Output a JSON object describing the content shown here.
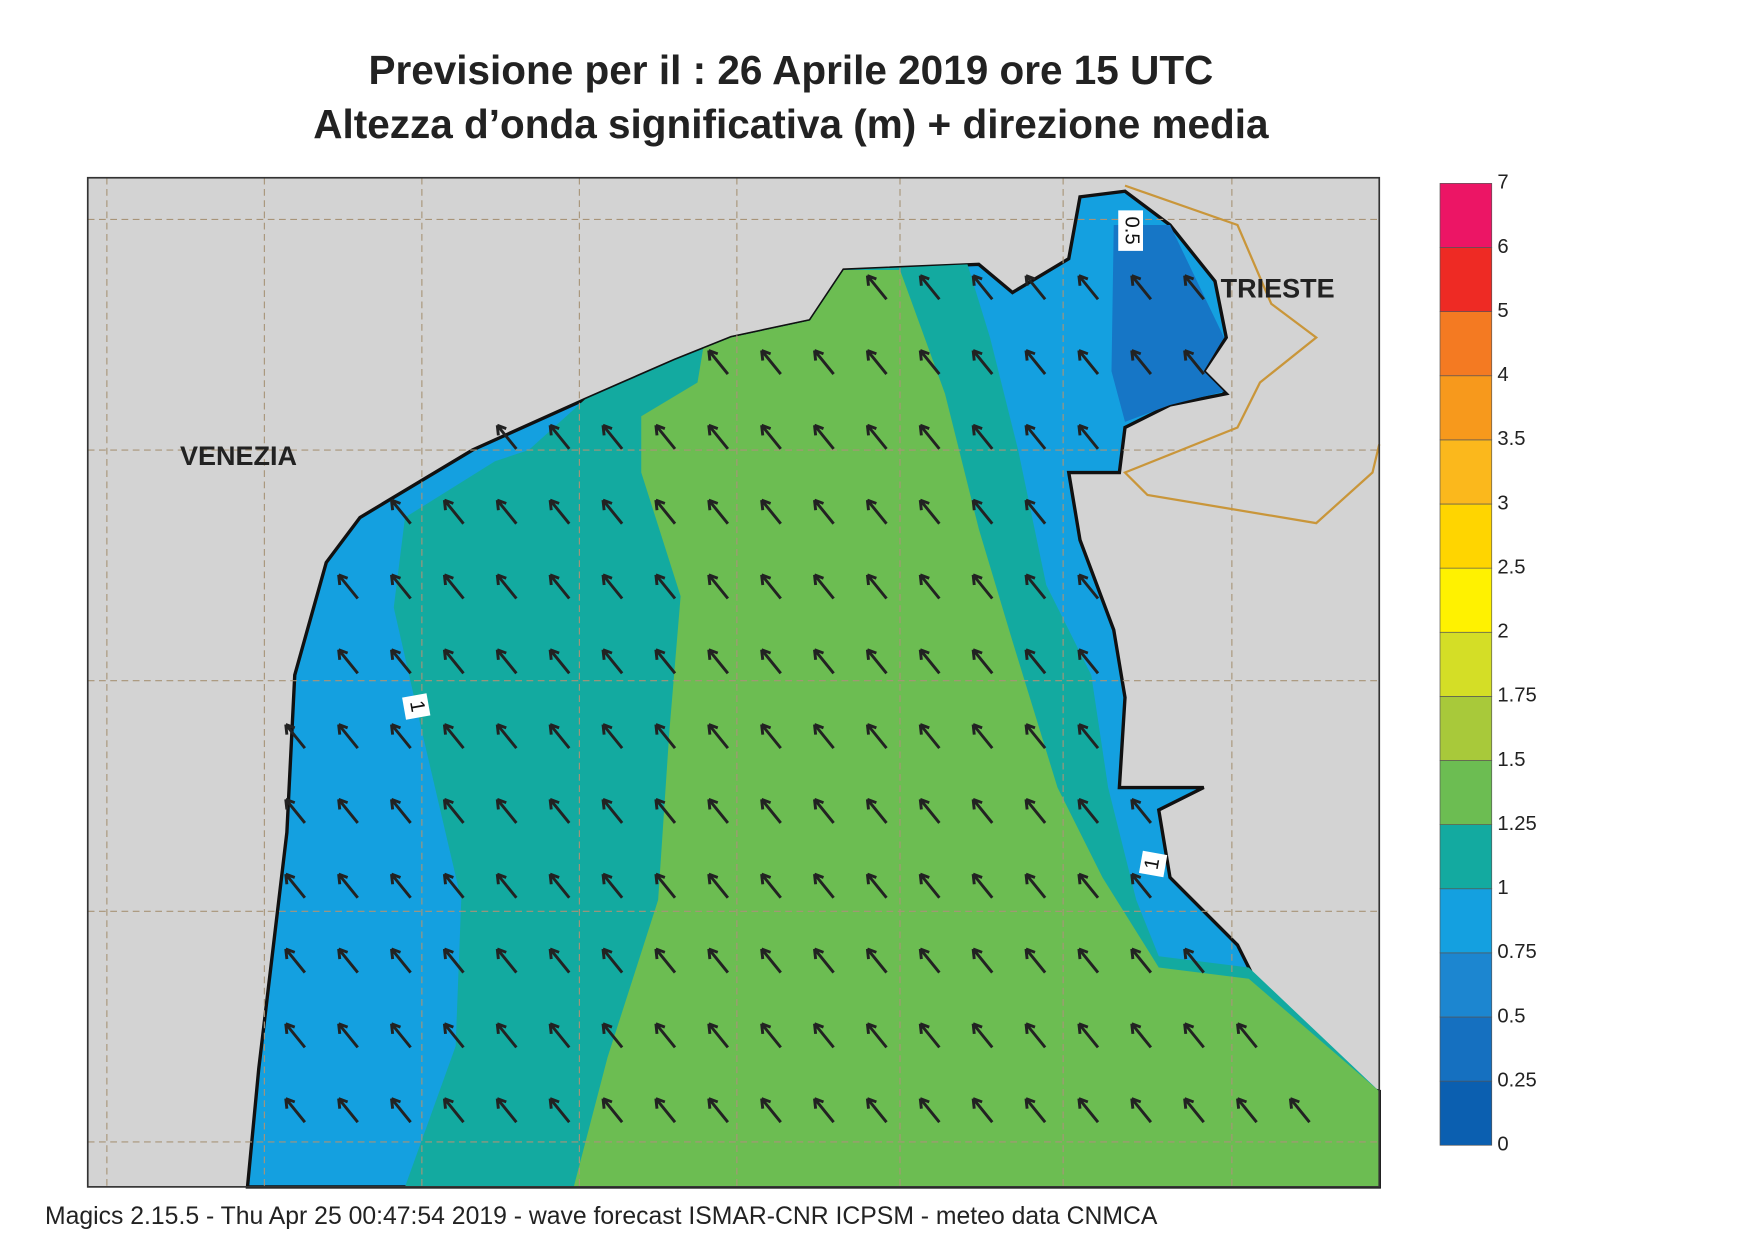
{
  "title": [
    "Previsione per il  :  26   Aprile  2019   ore 15 UTC",
    "Altezza d’onda significativa (m) + direzione media"
  ],
  "places": [
    "VENEZIA",
    "TRIESTE"
  ],
  "contour_labels": [
    "0.5",
    "1",
    "1"
  ],
  "legend": {
    "ticks": [
      0,
      0.25,
      0.5,
      0.75,
      1,
      1.25,
      1.5,
      1.75,
      2,
      2.5,
      3,
      3.5,
      4,
      5,
      6,
      7
    ],
    "colors": [
      "#0b5fb0",
      "#1570c0",
      "#1c86d0",
      "#14a0e0",
      "#13aaa0",
      "#6cbd52",
      "#a8c93a",
      "#d4de26",
      "#fff200",
      "#ffd500",
      "#fbb81c",
      "#f7991c",
      "#f47a22",
      "#ee2a24",
      "#ec1565"
    ]
  },
  "footer": "Magics 2.15.5 - Thu Apr 25 00:47:54 2019 - wave forecast  ISMAR-CNR  ICPSM - meteo data   CNMCA"
}
